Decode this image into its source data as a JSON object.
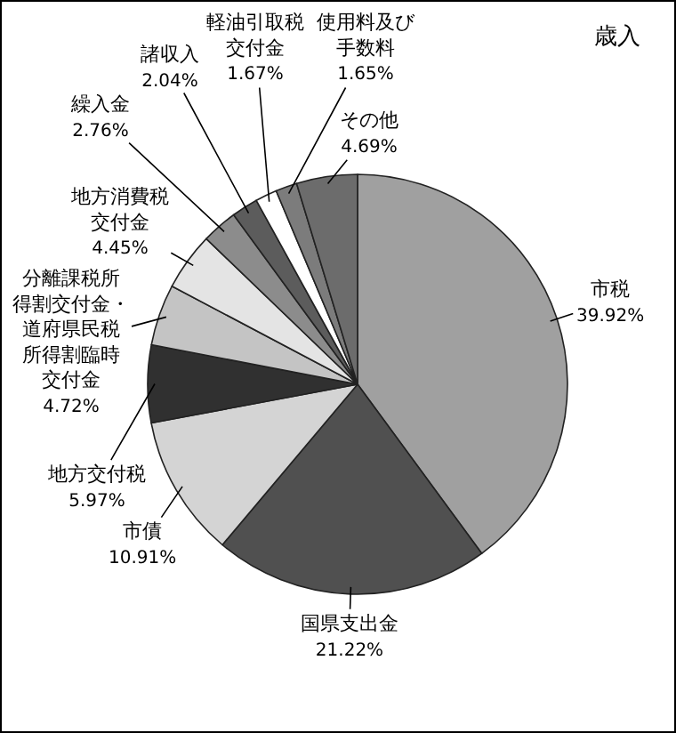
{
  "chart_data": {
    "type": "pie",
    "title": "歳入",
    "categories": [
      "市税",
      "国県支出金",
      "市債",
      "地方交付税",
      "分離課税所得割交付金・道府県民税所得割臨時交付金",
      "地方消費税交付金",
      "繰入金",
      "諸収入",
      "軽油引取税交付金",
      "使用料及び手数料",
      "その他"
    ],
    "values": [
      39.92,
      21.22,
      10.91,
      5.97,
      4.72,
      4.45,
      2.76,
      2.04,
      1.67,
      1.65,
      4.69
    ],
    "value_labels": [
      "39.92%",
      "21.22%",
      "10.91%",
      "5.97%",
      "4.72%",
      "4.45%",
      "2.76%",
      "2.04%",
      "1.67%",
      "1.65%",
      "4.69%"
    ],
    "colors": [
      "#a0a0a0",
      "#505050",
      "#d4d4d4",
      "#303030",
      "#c4c4c4",
      "#e4e4e4",
      "#8c8c8c",
      "#5c5c5c",
      "#ffffff",
      "#7c7c7c",
      "#6c6c6c"
    ],
    "legend": false
  }
}
